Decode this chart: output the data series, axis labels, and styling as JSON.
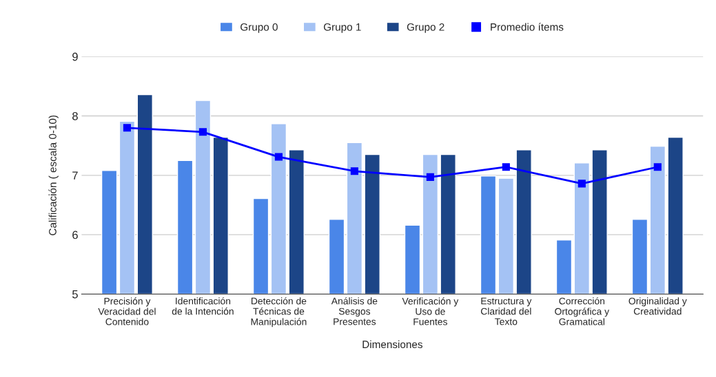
{
  "chart_data": {
    "type": "bar",
    "xlabel": "Dimensiones",
    "ylabel": "Calificación ( escala 0-10)",
    "categories": [
      "Precisión y\nVeracidad del\nContenido",
      "Identificación\nde la Intención",
      "Detección de\nTécnicas de\nManipulación",
      "Análisis de\nSesgos\nPresentes",
      "Verificación y\nUso de\nFuentes",
      "Estructura y\nClaridad del\nTexto",
      "Corrección\nOrtográfica y\nGramatical",
      "Originalidad y\nCreatividad"
    ],
    "series": [
      {
        "name": "Grupo 0",
        "color": "#4a86e8",
        "values": [
          7.08,
          7.25,
          6.61,
          6.26,
          6.16,
          6.99,
          5.91,
          6.26
        ]
      },
      {
        "name": "Grupo 1",
        "color": "#a4c2f4",
        "values": [
          7.91,
          8.26,
          7.87,
          7.55,
          7.35,
          6.95,
          7.21,
          7.49
        ]
      },
      {
        "name": "Grupo 2",
        "color": "#1c4587",
        "values": [
          8.36,
          7.64,
          7.43,
          7.35,
          7.35,
          7.43,
          7.43,
          7.64
        ]
      },
      {
        "name": "Promedio ítems",
        "type": "line",
        "color": "#0000ff",
        "marker": "square",
        "values": [
          7.8,
          7.73,
          7.31,
          7.07,
          6.97,
          7.14,
          6.86,
          7.14
        ]
      }
    ],
    "ylim": [
      5,
      9
    ],
    "yticks": [
      5,
      6,
      7,
      8,
      9
    ],
    "grid": "y",
    "legend": "top"
  }
}
